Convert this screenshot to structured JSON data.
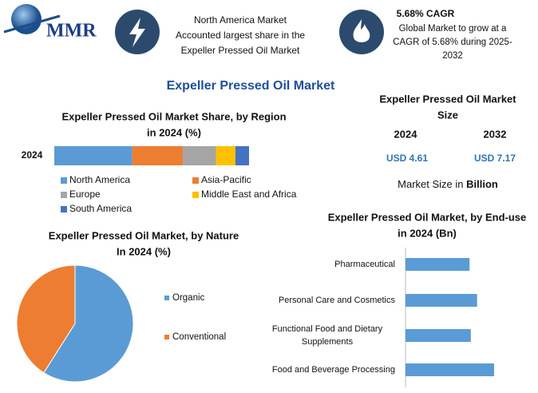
{
  "header": {
    "logo": "MMR",
    "info_1": [
      "North America Market",
      "Accounted largest share in the",
      "Expeller Pressed Oil Market"
    ],
    "info_2_title": "5.68% CAGR",
    "info_2": [
      "Global Market to grow at a",
      "CAGR of 5.68% during 2025-",
      "2032"
    ]
  },
  "title": "Expeller Pressed Oil Market",
  "market_size": {
    "title": [
      "Expeller Pressed Oil Market",
      "Size"
    ],
    "years": [
      "2024",
      "2032"
    ],
    "value_labels": [
      "USD 4.61",
      "USD 7.17"
    ],
    "note": "Market Size in",
    "unit": "Billion"
  },
  "chart_data": [
    {
      "type": "bar",
      "stacked": true,
      "title": [
        "Expeller Pressed Oil Market Share, by Region",
        "in 2024 (%)"
      ],
      "categories": [
        "2024"
      ],
      "series": [
        {
          "name": "North America",
          "color": "#5b9bd5",
          "values": [
            40
          ]
        },
        {
          "name": "Asia-Pacific",
          "color": "#ed7d31",
          "values": [
            26
          ]
        },
        {
          "name": "Europe",
          "color": "#a5a5a5",
          "values": [
            17
          ]
        },
        {
          "name": "Middle East and Africa",
          "color": "#ffc000",
          "values": [
            10
          ]
        },
        {
          "name": "South America",
          "color": "#4472c4",
          "values": [
            7
          ]
        }
      ]
    },
    {
      "type": "pie",
      "title": [
        "Expeller Pressed Oil Market, by Nature",
        "In 2024 (%)"
      ],
      "categories": [
        "Organic",
        "Conventional"
      ],
      "values": [
        59,
        41
      ],
      "colors": [
        "#5b9bd5",
        "#ed7d31"
      ]
    },
    {
      "type": "bar",
      "stacked": false,
      "title": [
        "Expeller Pressed Oil Market, by End-use",
        "in 2024 (Bn)"
      ],
      "categories": [
        "Pharmaceutical",
        "Personal Care and Cosmetics",
        "Functional Food and Dietary Supplements",
        "Food and Beverage Processing"
      ],
      "values": [
        1.02,
        1.14,
        1.04,
        1.41
      ],
      "color": "#5b9bd5"
    }
  ]
}
